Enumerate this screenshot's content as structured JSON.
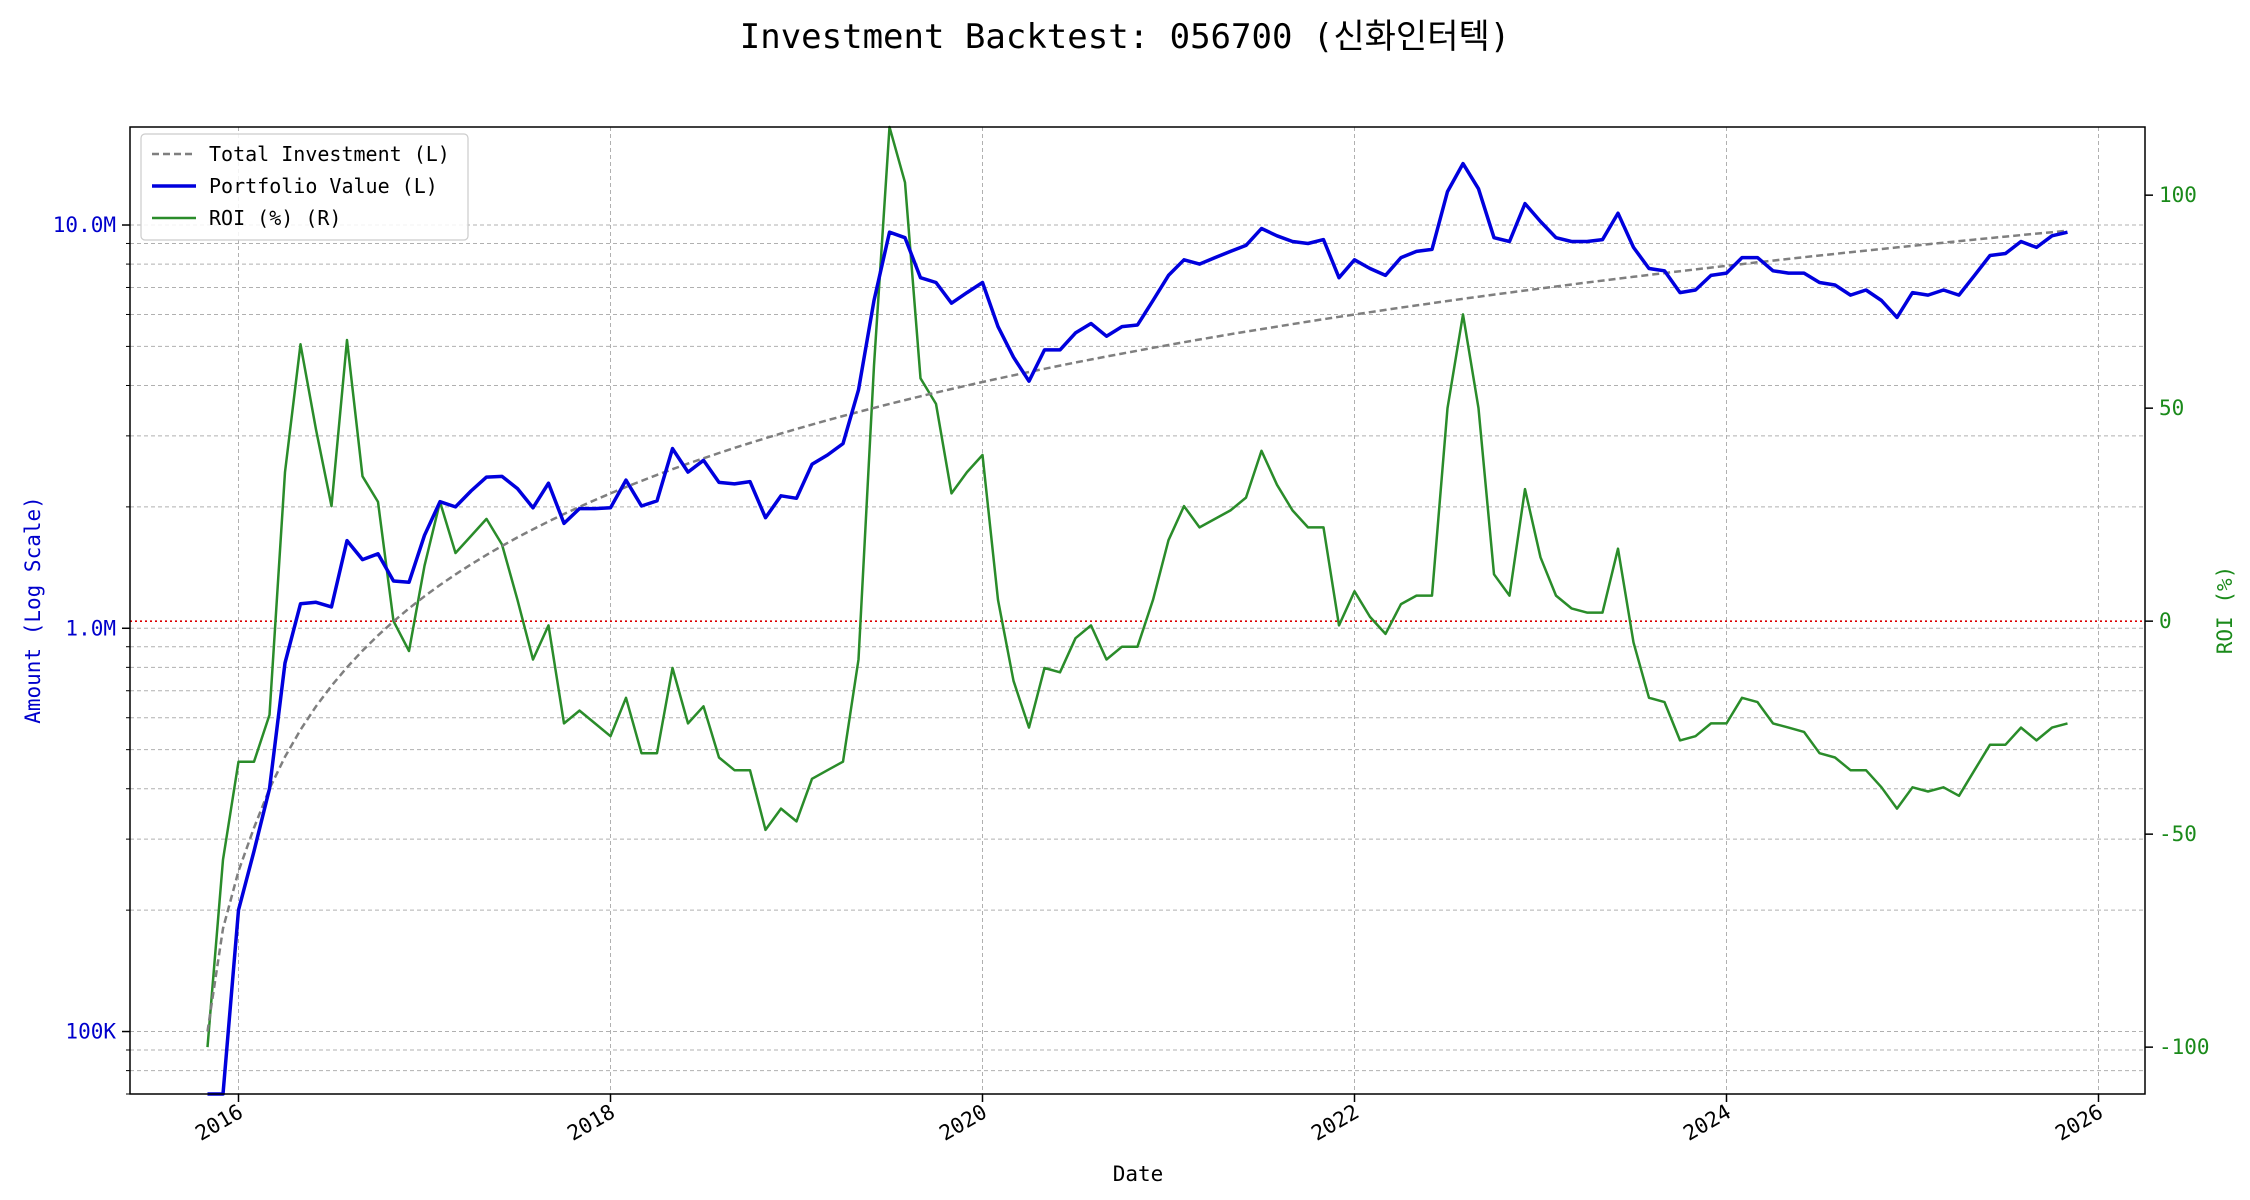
{
  "chart_data": {
    "type": "line",
    "title": "Investment Backtest: 056700 (신화인터텍)",
    "xlabel": "Date",
    "ylabel_left": "Amount (Log Scale)",
    "ylabel_right": "ROI (%)",
    "x_ticks": [
      "2016",
      "2018",
      "2020",
      "2022",
      "2024",
      "2026"
    ],
    "y_left_ticks": [
      "100K",
      "1.0M",
      "10.0M"
    ],
    "y_right_ticks": [
      "-100",
      "-50",
      "0",
      "50",
      "100"
    ],
    "y_left_scale": "log",
    "y_left_lim": [
      70000,
      17500000
    ],
    "y_right_lim": [
      -111,
      116
    ],
    "x_lim": [
      "2015-06",
      "2026-04"
    ],
    "grid": true,
    "legend_position": "top-left",
    "reference_line": {
      "axis": "right",
      "value": 0,
      "color": "#dd0000",
      "style": "dotted"
    },
    "dates": [
      "2015-11",
      "2015-12",
      "2016-01",
      "2016-02",
      "2016-03",
      "2016-04",
      "2016-05",
      "2016-06",
      "2016-07",
      "2016-08",
      "2016-09",
      "2016-10",
      "2016-11",
      "2016-12",
      "2017-01",
      "2017-02",
      "2017-03",
      "2017-04",
      "2017-05",
      "2017-06",
      "2017-07",
      "2017-08",
      "2017-09",
      "2017-10",
      "2017-11",
      "2017-12",
      "2018-01",
      "2018-02",
      "2018-03",
      "2018-04",
      "2018-05",
      "2018-06",
      "2018-07",
      "2018-08",
      "2018-09",
      "2018-10",
      "2018-11",
      "2018-12",
      "2019-01",
      "2019-02",
      "2019-03",
      "2019-04",
      "2019-05",
      "2019-06",
      "2019-07",
      "2019-08",
      "2019-09",
      "2019-10",
      "2019-11",
      "2019-12",
      "2020-01",
      "2020-02",
      "2020-03",
      "2020-04",
      "2020-05",
      "2020-06",
      "2020-07",
      "2020-08",
      "2020-09",
      "2020-10",
      "2020-11",
      "2020-12",
      "2021-01",
      "2021-02",
      "2021-03",
      "2021-04",
      "2021-05",
      "2021-06",
      "2021-07",
      "2021-08",
      "2021-09",
      "2021-10",
      "2021-11",
      "2021-12",
      "2022-01",
      "2022-02",
      "2022-03",
      "2022-04",
      "2022-05",
      "2022-06",
      "2022-07",
      "2022-08",
      "2022-09",
      "2022-10",
      "2022-11",
      "2022-12",
      "2023-01",
      "2023-02",
      "2023-03",
      "2023-04",
      "2023-05",
      "2023-06",
      "2023-07",
      "2023-08",
      "2023-09",
      "2023-10",
      "2023-11",
      "2023-12",
      "2024-01",
      "2024-02",
      "2024-03",
      "2024-04",
      "2024-05",
      "2024-06",
      "2024-07",
      "2024-08",
      "2024-09",
      "2024-10",
      "2024-11",
      "2024-12",
      "2025-01",
      "2025-02",
      "2025-03",
      "2025-04",
      "2025-05",
      "2025-06",
      "2025-07",
      "2025-08",
      "2025-09",
      "2025-10",
      "2025-11"
    ],
    "series": [
      {
        "name": "Total Investment (L)",
        "axis": "left",
        "color": "#7f7f7f",
        "style": "dashed",
        "values": [
          100000,
          180000,
          250000,
          320000,
          400000,
          480000,
          560000,
          640000,
          720000,
          800000,
          880000,
          960000,
          1040000,
          1120000,
          1200000,
          1280000,
          1360000,
          1440000,
          1520000,
          1600000,
          1680000,
          1760000,
          1840000,
          1920000,
          2000000,
          2080000,
          2160000,
          2240000,
          2320000,
          2400000,
          2480000,
          2560000,
          2640000,
          2720000,
          2800000,
          2880000,
          2960000,
          3040000,
          3120000,
          3200000,
          3280000,
          3360000,
          3440000,
          3520000,
          3600000,
          3680000,
          3760000,
          3840000,
          3920000,
          4000000,
          4080000,
          4160000,
          4240000,
          4320000,
          4400000,
          4480000,
          4560000,
          4640000,
          4720000,
          4800000,
          4880000,
          4960000,
          5040000,
          5120000,
          5200000,
          5280000,
          5360000,
          5440000,
          5520000,
          5600000,
          5680000,
          5760000,
          5840000,
          5920000,
          6000000,
          6080000,
          6160000,
          6240000,
          6320000,
          6400000,
          6480000,
          6560000,
          6640000,
          6720000,
          6800000,
          6880000,
          6960000,
          7040000,
          7120000,
          7200000,
          7280000,
          7360000,
          7440000,
          7520000,
          7600000,
          7680000,
          7760000,
          7840000,
          7920000,
          8000000,
          8080000,
          8160000,
          8240000,
          8320000,
          8400000,
          8480000,
          8560000,
          8640000,
          8720000,
          8800000,
          8880000,
          8960000,
          9040000,
          9120000,
          9200000,
          9280000,
          9360000,
          9440000,
          9520000,
          9600000,
          9680000
        ]
      },
      {
        "name": "Portfolio Value (L)",
        "axis": "left",
        "color": "#0000dd",
        "style": "solid",
        "values": [
          0,
          60000,
          200000,
          280000,
          400000,
          820000,
          1150000,
          1160000,
          1130000,
          1650000,
          1480000,
          1530000,
          1310000,
          1300000,
          1700000,
          2060000,
          2000000,
          2190000,
          2370000,
          2380000,
          2220000,
          1990000,
          2290000,
          1820000,
          1980000,
          1980000,
          1990000,
          2330000,
          2010000,
          2070000,
          2790000,
          2440000,
          2610000,
          2300000,
          2280000,
          2310000,
          1880000,
          2130000,
          2100000,
          2550000,
          2690000,
          2870000,
          3900000,
          6500000,
          9600000,
          9300000,
          7400000,
          7200000,
          6400000,
          6800000,
          7200000,
          5600000,
          4700000,
          4100000,
          4900000,
          4900000,
          5400000,
          5700000,
          5300000,
          5600000,
          5650000,
          6500000,
          7500000,
          8200000,
          8000000,
          8300000,
          8600000,
          8900000,
          9800000,
          9400000,
          9100000,
          9000000,
          9200000,
          7400000,
          8200000,
          7800000,
          7500000,
          8300000,
          8600000,
          8700000,
          12100000,
          14200000,
          12300000,
          9300000,
          9100000,
          11300000,
          10200000,
          9300000,
          9100000,
          9100000,
          9200000,
          10700000,
          8800000,
          7800000,
          7700000,
          6800000,
          6900000,
          7500000,
          7600000,
          8300000,
          8300000,
          7700000,
          7600000,
          7600000,
          7200000,
          7100000,
          6700000,
          6900000,
          6500000,
          5900000,
          6800000,
          6700000,
          6900000,
          6700000,
          7500000,
          8400000,
          8500000,
          9100000,
          8800000,
          9400000,
          9600000
        ]
      },
      {
        "name": "ROI (%) (R)",
        "axis": "right",
        "color": "#2a8c2a",
        "style": "solid",
        "values": [
          -100,
          -56,
          -33,
          -33,
          -22,
          35,
          65,
          45,
          27,
          66,
          34,
          28,
          0,
          -7,
          13,
          28,
          16,
          20,
          24,
          18,
          5,
          -9,
          -1,
          -24,
          -21,
          -24,
          -27,
          -18,
          -31,
          -31,
          -11,
          -24,
          -20,
          -32,
          -35,
          -35,
          -49,
          -44,
          -47,
          -37,
          -35,
          -33,
          -9,
          60,
          116,
          103,
          57,
          51,
          30,
          35,
          39,
          5,
          -14,
          -25,
          -11,
          -12,
          -4,
          -1,
          -9,
          -6,
          -6,
          5,
          19,
          27,
          22,
          24,
          26,
          29,
          40,
          32,
          26,
          22,
          22,
          -1,
          7,
          1,
          -3,
          4,
          6,
          6,
          50,
          72,
          50,
          11,
          6,
          31,
          15,
          6,
          3,
          2,
          2,
          17,
          -5,
          -18,
          -19,
          -28,
          -27,
          -24,
          -24,
          -18,
          -19,
          -24,
          -25,
          -26,
          -31,
          -32,
          -35,
          -35,
          -39,
          -44,
          -39,
          -40,
          -39,
          -41,
          -35,
          -29,
          -29,
          -25,
          -28,
          -25,
          -24
        ]
      }
    ]
  }
}
